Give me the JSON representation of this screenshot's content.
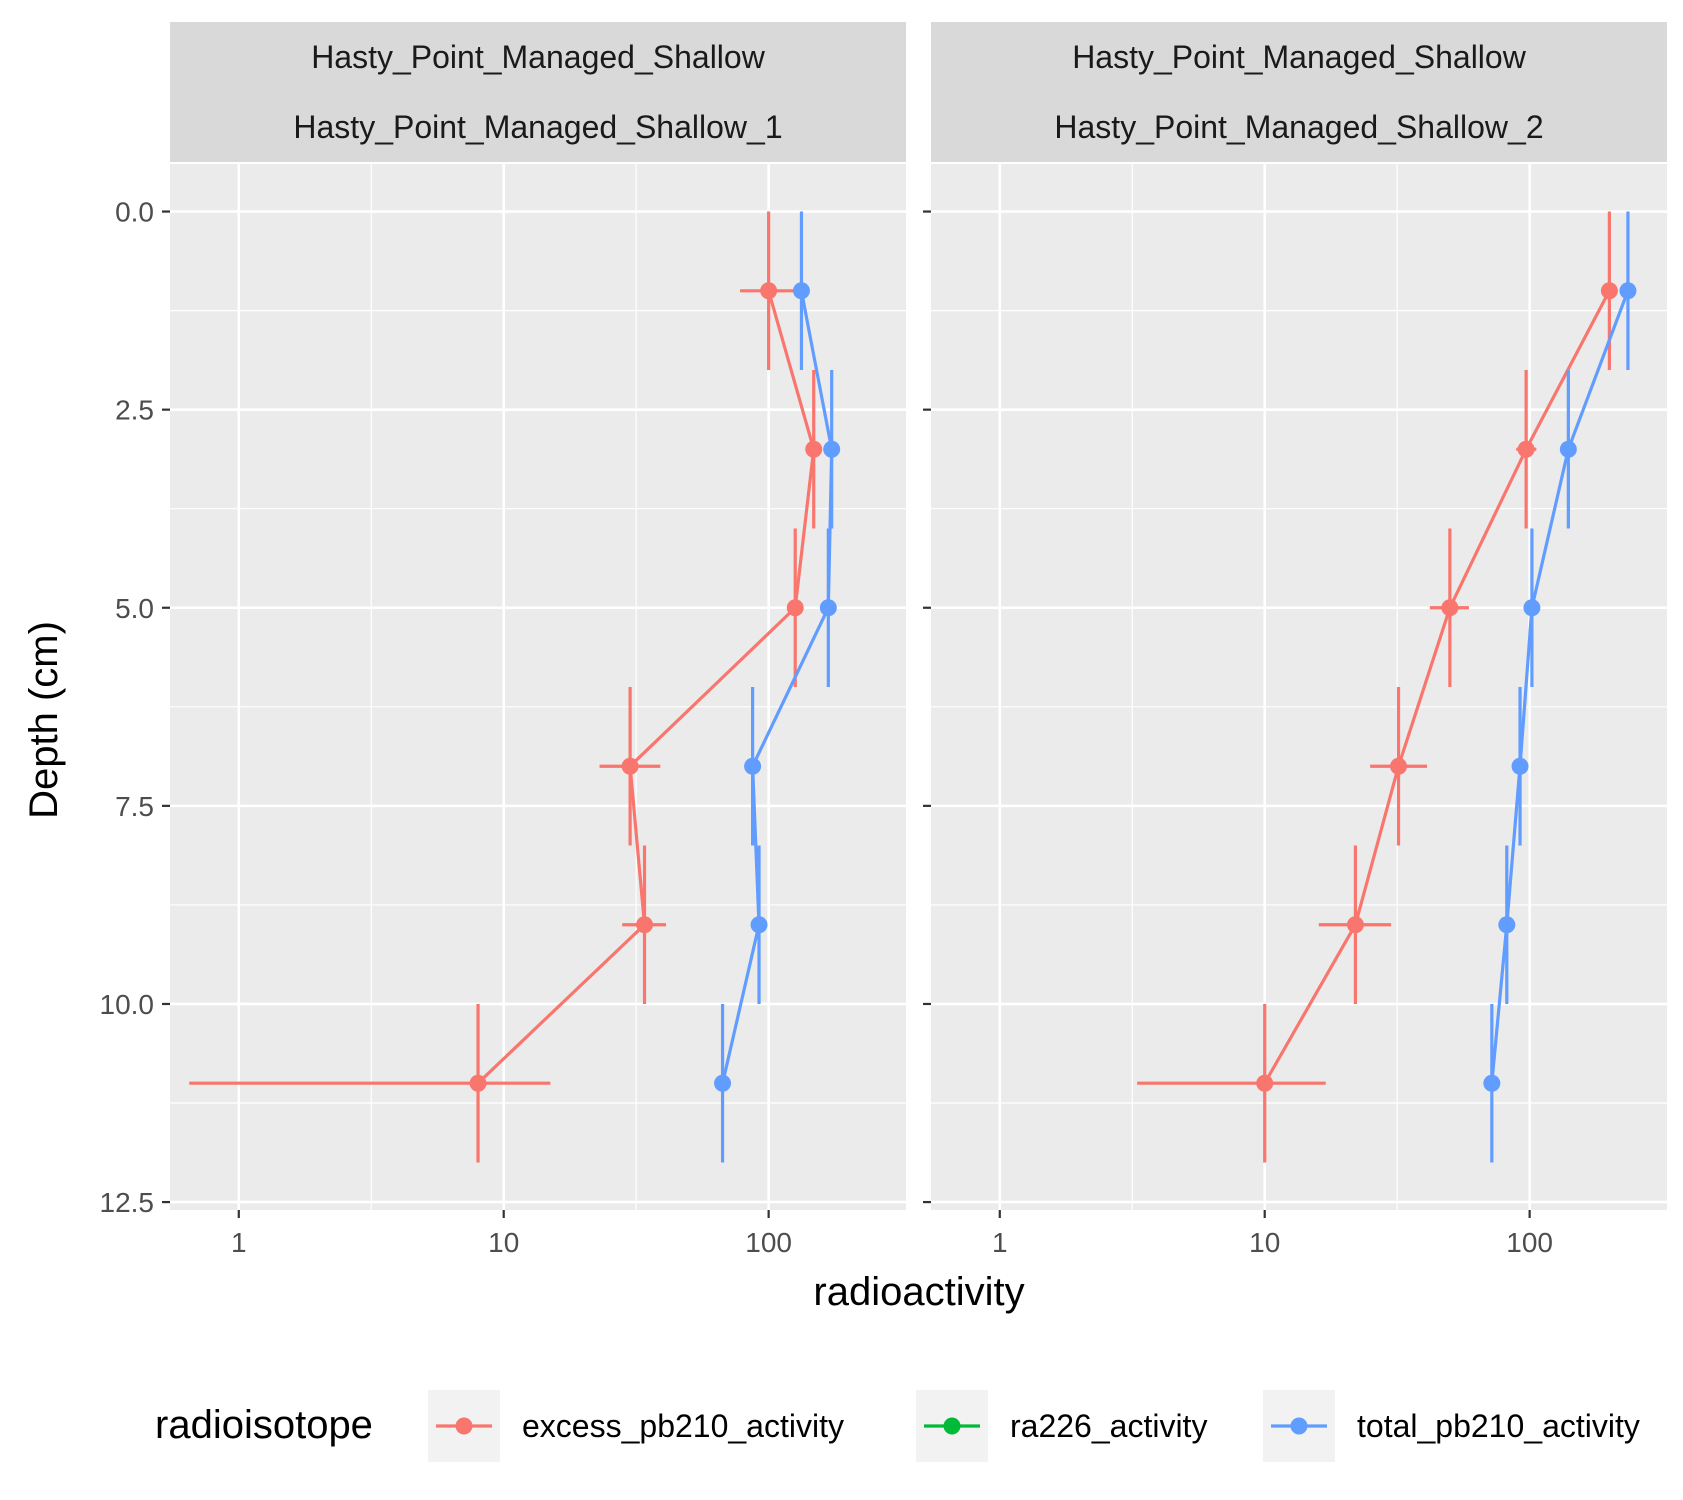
{
  "chart_data": {
    "type": "line",
    "facet_rows": [
      "Hasty_Point_Managed_Shallow",
      "Hasty_Point_Managed_Shallow"
    ],
    "facets": [
      "Hasty_Point_Managed_Shallow_1",
      "Hasty_Point_Managed_Shallow_2"
    ],
    "xlabel": "radioactivity",
    "ylabel": "Depth (cm)",
    "x_scale": "log10",
    "xlim": [
      0.55,
      330
    ],
    "x_ticks": [
      1,
      10,
      100
    ],
    "x_tick_labels": [
      "1",
      "10",
      "100"
    ],
    "ylim": [
      12.6,
      -0.6
    ],
    "y_reversed": true,
    "y_ticks": [
      0,
      2.5,
      5,
      7.5,
      10,
      12.5
    ],
    "y_tick_labels": [
      "0.0",
      "2.5",
      "5.0",
      "7.5",
      "10.0",
      "12.5"
    ],
    "grid": true,
    "legend": {
      "title": "radioisotope",
      "position": "bottom",
      "entries": [
        "excess_pb210_activity",
        "ra226_activity",
        "total_pb210_activity"
      ]
    },
    "colors": {
      "excess_pb210_activity": "#F8766D",
      "ra226_activity": "#00BA38",
      "total_pb210_activity": "#619CFF"
    },
    "panels": [
      {
        "facet": "Hasty_Point_Managed_Shallow_1",
        "series": [
          {
            "name": "excess_pb210_activity",
            "points": [
              {
                "x": 100,
                "y": 1,
                "xmin": 78,
                "xmax": 130,
                "ymin": 0,
                "ymax": 2
              },
              {
                "x": 148,
                "y": 3,
                "xmin": 145,
                "xmax": 152,
                "ymin": 2,
                "ymax": 4
              },
              {
                "x": 126,
                "y": 5,
                "xmin": 124,
                "xmax": 128,
                "ymin": 4,
                "ymax": 6
              },
              {
                "x": 30,
                "y": 7,
                "xmin": 23,
                "xmax": 39,
                "ymin": 6,
                "ymax": 8
              },
              {
                "x": 34,
                "y": 9,
                "xmin": 28,
                "xmax": 41,
                "ymin": 8,
                "ymax": 10
              },
              {
                "x": 8,
                "y": 11,
                "xmin": 0.65,
                "xmax": 15,
                "ymin": 10,
                "ymax": 12
              }
            ]
          },
          {
            "name": "ra226_activity",
            "points": []
          },
          {
            "name": "total_pb210_activity",
            "points": [
              {
                "x": 133,
                "y": 1,
                "xmin": 130,
                "xmax": 136,
                "ymin": 0,
                "ymax": 2
              },
              {
                "x": 173,
                "y": 3,
                "xmin": 170,
                "xmax": 176,
                "ymin": 2,
                "ymax": 4
              },
              {
                "x": 168,
                "y": 5,
                "xmin": 165,
                "xmax": 171,
                "ymin": 4,
                "ymax": 6
              },
              {
                "x": 87,
                "y": 7,
                "xmin": 85,
                "xmax": 89,
                "ymin": 6,
                "ymax": 8
              },
              {
                "x": 92,
                "y": 9,
                "xmin": 90,
                "xmax": 94,
                "ymin": 8,
                "ymax": 10
              },
              {
                "x": 67,
                "y": 11,
                "xmin": 65,
                "xmax": 69,
                "ymin": 10,
                "ymax": 12
              }
            ]
          }
        ]
      },
      {
        "facet": "Hasty_Point_Managed_Shallow_2",
        "series": [
          {
            "name": "excess_pb210_activity",
            "points": [
              {
                "x": 200,
                "y": 1,
                "xmin": 197,
                "xmax": 203,
                "ymin": 0,
                "ymax": 2
              },
              {
                "x": 97,
                "y": 3,
                "xmin": 89,
                "xmax": 106,
                "ymin": 2,
                "ymax": 4
              },
              {
                "x": 50,
                "y": 5,
                "xmin": 42,
                "xmax": 59,
                "ymin": 4,
                "ymax": 6
              },
              {
                "x": 32,
                "y": 7,
                "xmin": 25,
                "xmax": 41,
                "ymin": 6,
                "ymax": 8
              },
              {
                "x": 22,
                "y": 9,
                "xmin": 16,
                "xmax": 30,
                "ymin": 8,
                "ymax": 10
              },
              {
                "x": 10,
                "y": 11,
                "xmin": 3.3,
                "xmax": 17,
                "ymin": 10,
                "ymax": 12
              }
            ]
          },
          {
            "name": "ra226_activity",
            "points": []
          },
          {
            "name": "total_pb210_activity",
            "points": [
              {
                "x": 235,
                "y": 1,
                "xmin": 231,
                "xmax": 239,
                "ymin": 0,
                "ymax": 2
              },
              {
                "x": 140,
                "y": 3,
                "xmin": 137,
                "xmax": 143,
                "ymin": 2,
                "ymax": 4
              },
              {
                "x": 102,
                "y": 5,
                "xmin": 100,
                "xmax": 104,
                "ymin": 4,
                "ymax": 6
              },
              {
                "x": 92,
                "y": 7,
                "xmin": 90,
                "xmax": 94,
                "ymin": 6,
                "ymax": 8
              },
              {
                "x": 82,
                "y": 9,
                "xmin": 80,
                "xmax": 84,
                "ymin": 8,
                "ymax": 10
              },
              {
                "x": 72,
                "y": 11,
                "xmin": 70,
                "xmax": 74,
                "ymin": 10,
                "ymax": 12
              }
            ]
          }
        ]
      }
    ]
  }
}
